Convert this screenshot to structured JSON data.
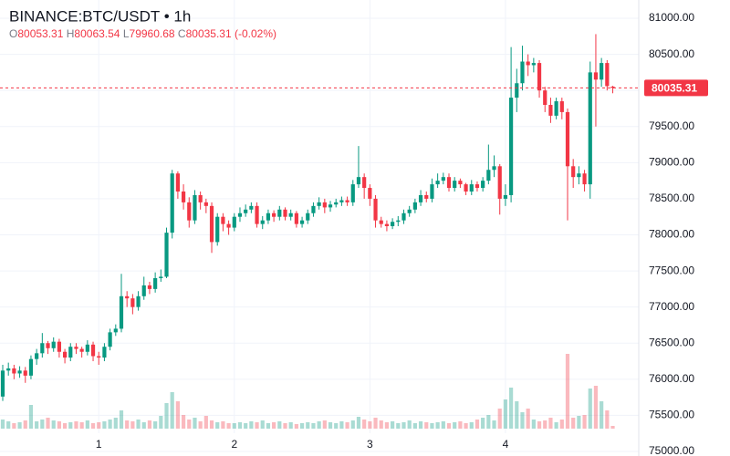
{
  "chart_data": {
    "type": "candlestick",
    "title": "BINANCE:BTC/USDT • 1h",
    "ohlc": [
      {
        "label": "O",
        "value": 80053.31
      },
      {
        "label": "H",
        "value": 80063.54
      },
      {
        "label": "L",
        "value": 79960.68
      },
      {
        "label": "C",
        "value": 80035.31
      }
    ],
    "change": {
      "value": -0.02,
      "label": "(-0.02%)"
    },
    "last_price": 80035.31,
    "up_color": "#089981",
    "down_color": "#f23645",
    "grid": true,
    "ylim": [
      75000,
      81000
    ],
    "yticks": [
      {
        "value": 75000,
        "label": "75000.00"
      },
      {
        "value": 75500,
        "label": "75500.00"
      },
      {
        "value": 76000,
        "label": "76000.00"
      },
      {
        "value": 76500,
        "label": "76500.00"
      },
      {
        "value": 77000,
        "label": "77000.00"
      },
      {
        "value": 77500,
        "label": "77500.00"
      },
      {
        "value": 78000,
        "label": "78000.00"
      },
      {
        "value": 78500,
        "label": "78500.00"
      },
      {
        "value": 79000,
        "label": "79000.00"
      },
      {
        "value": 79500,
        "label": "79500.00"
      },
      {
        "value": 80000,
        "label": "80000.00"
      },
      {
        "value": 80500,
        "label": "80500.00"
      },
      {
        "value": 81000,
        "label": "81000.00"
      }
    ],
    "categories": [
      null,
      null,
      null,
      null,
      null,
      null,
      null,
      null,
      null,
      null,
      null,
      null,
      null,
      null,
      null,
      null,
      null,
      "1",
      null,
      null,
      null,
      null,
      null,
      null,
      null,
      null,
      null,
      null,
      null,
      null,
      null,
      null,
      null,
      null,
      null,
      null,
      null,
      null,
      null,
      null,
      null,
      "2",
      null,
      null,
      null,
      null,
      null,
      null,
      null,
      null,
      null,
      null,
      null,
      null,
      null,
      null,
      null,
      null,
      null,
      null,
      null,
      null,
      null,
      null,
      null,
      "3",
      null,
      null,
      null,
      null,
      null,
      null,
      null,
      null,
      null,
      null,
      null,
      null,
      null,
      null,
      null,
      null,
      null,
      null,
      null,
      null,
      null,
      null,
      null,
      "4",
      null,
      null,
      null,
      null,
      null,
      null,
      null,
      null,
      null,
      null,
      null,
      null,
      null,
      null,
      null,
      null,
      null,
      null,
      null
    ],
    "open": [
      75760,
      76120,
      76150,
      76080,
      76120,
      76050,
      76280,
      76360,
      76500,
      76430,
      76520,
      76380,
      76300,
      76450,
      76420,
      76380,
      76480,
      76320,
      76300,
      76450,
      76650,
      76700,
      77150,
      77120,
      77000,
      77150,
      77300,
      77250,
      77400,
      77420,
      78030,
      78850,
      78600,
      78450,
      78200,
      78550,
      78450,
      78400,
      77900,
      78250,
      78150,
      78100,
      78250,
      78300,
      78350,
      78400,
      78150,
      78200,
      78300,
      78250,
      78350,
      78250,
      78300,
      78150,
      78200,
      78300,
      78400,
      78450,
      78380,
      78420,
      78450,
      78480,
      78450,
      78700,
      78800,
      78650,
      78500,
      78200,
      78150,
      78120,
      78180,
      78200,
      78300,
      78350,
      78450,
      78550,
      78500,
      78700,
      78750,
      78800,
      78650,
      78750,
      78700,
      78600,
      78700,
      78650,
      78750,
      78900,
      78950,
      78500,
      78550,
      79900,
      80100,
      80400,
      80350,
      80380,
      80000,
      79800,
      79650,
      79850,
      79700,
      78950,
      78800,
      78850,
      78700,
      80250,
      80150,
      80380,
      80053.31
    ],
    "high": [
      76200,
      76230,
      76200,
      76180,
      76170,
      76330,
      76420,
      76640,
      76530,
      76580,
      76560,
      76420,
      76500,
      76500,
      76450,
      76540,
      76520,
      76380,
      76500,
      76700,
      76760,
      77460,
      77220,
      77180,
      77220,
      77420,
      77350,
      77480,
      77520,
      78100,
      78900,
      78880,
      78700,
      78520,
      78620,
      78600,
      78500,
      78450,
      78300,
      78300,
      78200,
      78300,
      78380,
      78420,
      78450,
      78450,
      78260,
      78350,
      78340,
      78400,
      78380,
      78350,
      78330,
      78250,
      78350,
      78450,
      78520,
      78500,
      78470,
      78500,
      78530,
      78530,
      78760,
      79230,
      78850,
      78700,
      78550,
      78250,
      78200,
      78230,
      78260,
      78350,
      78400,
      78500,
      78620,
      78600,
      78780,
      78850,
      78860,
      78850,
      78800,
      78780,
      78720,
      78760,
      78740,
      78800,
      79250,
      79100,
      78980,
      78700,
      80600,
      80300,
      80620,
      80500,
      80450,
      80420,
      80050,
      79900,
      79900,
      79900,
      79750,
      79050,
      78950,
      78900,
      80400,
      80780,
      80450,
      80420,
      80063.54
    ],
    "low": [
      75700,
      76050,
      76000,
      76020,
      75950,
      76000,
      76200,
      76300,
      76350,
      76380,
      76300,
      76220,
      76250,
      76350,
      76300,
      76330,
      76250,
      76200,
      76250,
      76400,
      76600,
      76650,
      77000,
      76900,
      76950,
      77100,
      77180,
      77200,
      77350,
      77400,
      77950,
      78500,
      78350,
      78100,
      78150,
      78350,
      78300,
      77750,
      77850,
      78050,
      78000,
      78050,
      78180,
      78250,
      78300,
      78100,
      78080,
      78150,
      78180,
      78200,
      78200,
      78200,
      78100,
      78100,
      78150,
      78250,
      78350,
      78300,
      78320,
      78380,
      78400,
      78400,
      78400,
      78650,
      78500,
      78400,
      78100,
      78100,
      78050,
      78080,
      78120,
      78150,
      78250,
      78300,
      78400,
      78450,
      78450,
      78650,
      78700,
      78600,
      78600,
      78650,
      78550,
      78550,
      78600,
      78600,
      78700,
      78800,
      78280,
      78400,
      78450,
      79700,
      80000,
      80200,
      80250,
      79900,
      79700,
      79550,
      79600,
      79600,
      78200,
      78650,
      78700,
      78600,
      78500,
      79500,
      80050,
      80000,
      79960.68
    ],
    "close": [
      76120,
      76150,
      76080,
      76120,
      76050,
      76280,
      76360,
      76500,
      76430,
      76520,
      76380,
      76300,
      76450,
      76420,
      76380,
      76480,
      76320,
      76300,
      76450,
      76650,
      76700,
      77150,
      77120,
      77000,
      77150,
      77300,
      77250,
      77400,
      77420,
      78030,
      78850,
      78600,
      78450,
      78200,
      78550,
      78450,
      78400,
      77900,
      78250,
      78150,
      78100,
      78250,
      78300,
      78350,
      78400,
      78150,
      78200,
      78300,
      78250,
      78350,
      78250,
      78300,
      78150,
      78200,
      78300,
      78400,
      78450,
      78380,
      78420,
      78450,
      78480,
      78450,
      78700,
      78800,
      78650,
      78500,
      78200,
      78150,
      78120,
      78180,
      78200,
      78300,
      78350,
      78450,
      78550,
      78500,
      78700,
      78750,
      78800,
      78650,
      78750,
      78700,
      78600,
      78700,
      78650,
      78750,
      78900,
      78950,
      78500,
      78550,
      79900,
      80100,
      80400,
      80350,
      80380,
      80000,
      79800,
      79650,
      79850,
      79700,
      78950,
      78800,
      78850,
      78700,
      80250,
      80150,
      80380,
      80060,
      80035.31
    ],
    "volume": [
      10,
      8,
      6,
      7,
      9,
      26,
      8,
      10,
      12,
      9,
      8,
      6,
      7,
      8,
      7,
      9,
      6,
      7,
      8,
      10,
      12,
      20,
      9,
      8,
      10,
      7,
      9,
      8,
      14,
      28,
      40,
      30,
      15,
      10,
      12,
      8,
      14,
      9,
      7,
      8,
      6,
      6,
      7,
      6,
      8,
      7,
      9,
      6,
      7,
      8,
      6,
      7,
      5,
      6,
      7,
      6,
      8,
      9,
      7,
      6,
      8,
      7,
      9,
      13,
      10,
      8,
      12,
      9,
      7,
      8,
      6,
      7,
      9,
      6,
      8,
      7,
      6,
      7,
      8,
      6,
      7,
      8,
      6,
      7,
      10,
      12,
      15,
      9,
      22,
      32,
      45,
      30,
      18,
      22,
      10,
      8,
      9,
      12,
      7,
      10,
      82,
      12,
      14,
      15,
      44,
      47,
      30,
      20,
      3
    ]
  }
}
